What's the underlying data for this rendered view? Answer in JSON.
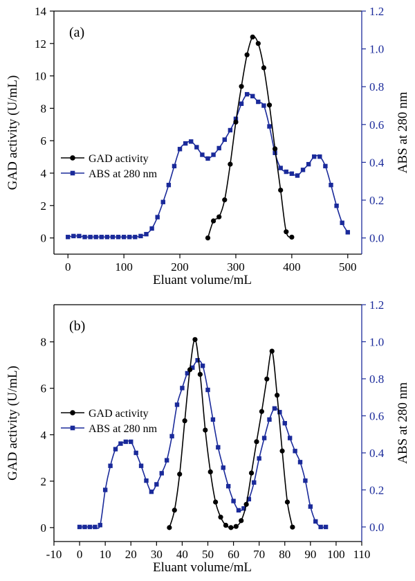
{
  "chart_data": [
    {
      "panel_label": "(a)",
      "type": "line",
      "xlabel": "Eluant volume/mL",
      "ylabel_left": "GAD activity (U/mL)",
      "ylabel_right": "ABS at 280 nm",
      "xlim": [
        -25,
        525
      ],
      "ylim_left": [
        -1,
        14
      ],
      "ylim_right": [
        -0.0857,
        1.2
      ],
      "x_ticks": [
        0,
        100,
        200,
        300,
        400,
        500
      ],
      "y_left_ticks": [
        0,
        2,
        4,
        6,
        8,
        10,
        12,
        14
      ],
      "y_right_ticks": [
        "0.0",
        "0.2",
        "0.4",
        "0.6",
        "0.8",
        "1.0",
        "1.2"
      ],
      "legend_position": "middle-left",
      "series": [
        {
          "name": "GAD activity",
          "axis": "left",
          "color": "#000000",
          "marker": "circle",
          "x": [
            250,
            260,
            270,
            280,
            290,
            300,
            310,
            320,
            330,
            340,
            350,
            360,
            370,
            380,
            390,
            400
          ],
          "y": [
            0.0,
            1.05,
            1.3,
            2.35,
            4.55,
            7.15,
            9.35,
            11.3,
            12.4,
            12.0,
            10.5,
            8.2,
            5.5,
            2.95,
            0.38,
            0.05
          ]
        },
        {
          "name": "ABS at 280 nm",
          "axis": "right",
          "color": "#1a2a9a",
          "marker": "square",
          "x": [
            0,
            10,
            20,
            30,
            40,
            50,
            60,
            70,
            80,
            90,
            100,
            110,
            120,
            130,
            140,
            150,
            160,
            170,
            180,
            190,
            200,
            210,
            220,
            230,
            240,
            250,
            260,
            270,
            280,
            290,
            300,
            310,
            320,
            330,
            340,
            350,
            360,
            370,
            380,
            390,
            400,
            410,
            420,
            430,
            440,
            450,
            460,
            470,
            480,
            490,
            500
          ],
          "y": [
            0.005,
            0.01,
            0.01,
            0.005,
            0.005,
            0.005,
            0.005,
            0.005,
            0.005,
            0.005,
            0.005,
            0.005,
            0.005,
            0.01,
            0.02,
            0.05,
            0.11,
            0.19,
            0.28,
            0.38,
            0.47,
            0.5,
            0.51,
            0.48,
            0.44,
            0.42,
            0.44,
            0.475,
            0.52,
            0.57,
            0.63,
            0.71,
            0.76,
            0.75,
            0.72,
            0.7,
            0.59,
            0.45,
            0.37,
            0.35,
            0.34,
            0.33,
            0.36,
            0.39,
            0.43,
            0.43,
            0.38,
            0.28,
            0.17,
            0.08,
            0.03
          ]
        }
      ]
    },
    {
      "panel_label": "(b)",
      "type": "line",
      "xlabel": "Eluant volume/mL",
      "ylabel_left": "GAD activity (U/mL)",
      "ylabel_right": "ABS at 280 nm",
      "xlim": [
        -10,
        110
      ],
      "ylim_left": [
        -0.6,
        9.6
      ],
      "ylim_right": [
        -0.0787,
        1.2
      ],
      "x_ticks": [
        -10,
        0,
        10,
        20,
        30,
        40,
        50,
        60,
        70,
        80,
        90,
        100,
        110
      ],
      "y_left_ticks": [
        0,
        2,
        4,
        6,
        8
      ],
      "y_right_ticks": [
        "0.0",
        "0.2",
        "0.4",
        "0.6",
        "0.8",
        "1.0",
        "1.2"
      ],
      "legend_position": "middle-left",
      "series": [
        {
          "name": "GAD activity",
          "axis": "left",
          "color": "#000000",
          "marker": "circle",
          "x": [
            35,
            37,
            39,
            41,
            43,
            45,
            47,
            49,
            51,
            53,
            55,
            57,
            59,
            61,
            63,
            65,
            67,
            69,
            71,
            73,
            75,
            77,
            79,
            81,
            83
          ],
          "y": [
            0.0,
            0.75,
            2.3,
            4.6,
            6.8,
            8.1,
            6.6,
            4.2,
            2.4,
            1.1,
            0.45,
            0.1,
            0.0,
            0.05,
            0.3,
            1.0,
            2.35,
            3.7,
            5.0,
            6.4,
            7.6,
            5.7,
            3.3,
            1.1,
            0.02
          ]
        },
        {
          "name": "ABS at 280 nm",
          "axis": "right",
          "color": "#1a2a9a",
          "marker": "square",
          "x": [
            0,
            2,
            4,
            6,
            8,
            10,
            12,
            14,
            16,
            18,
            20,
            22,
            24,
            26,
            28,
            30,
            32,
            34,
            36,
            38,
            40,
            42,
            44,
            46,
            48,
            50,
            52,
            54,
            56,
            58,
            60,
            62,
            64,
            66,
            68,
            70,
            72,
            74,
            76,
            78,
            80,
            82,
            84,
            86,
            88,
            90,
            92,
            94,
            96
          ],
          "y": [
            0.0,
            0.0,
            0.0,
            0.0,
            0.01,
            0.2,
            0.33,
            0.42,
            0.45,
            0.46,
            0.46,
            0.4,
            0.33,
            0.25,
            0.19,
            0.23,
            0.29,
            0.36,
            0.49,
            0.66,
            0.75,
            0.83,
            0.86,
            0.9,
            0.87,
            0.74,
            0.58,
            0.43,
            0.32,
            0.22,
            0.14,
            0.09,
            0.1,
            0.15,
            0.24,
            0.37,
            0.48,
            0.58,
            0.64,
            0.62,
            0.56,
            0.48,
            0.41,
            0.35,
            0.25,
            0.11,
            0.03,
            0.0,
            0.0
          ]
        }
      ]
    }
  ]
}
